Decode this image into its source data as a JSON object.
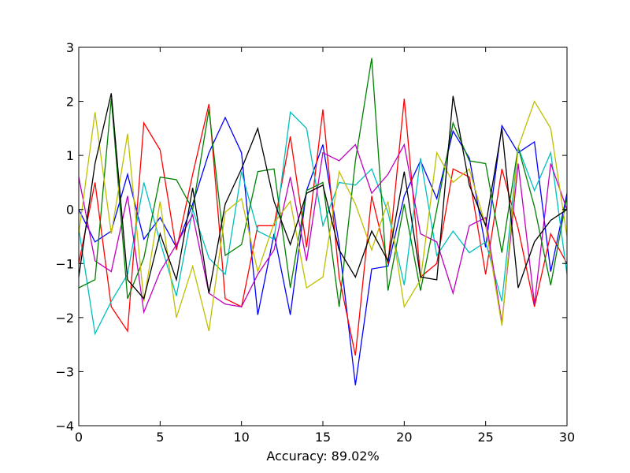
{
  "chart_data": {
    "type": "line",
    "title": "",
    "xlabel": "Accuracy: 89.02%",
    "ylabel": "",
    "xlim": [
      0,
      30
    ],
    "ylim": [
      -4,
      3
    ],
    "xticks": [
      0,
      5,
      10,
      15,
      20,
      25,
      30
    ],
    "yticks": [
      -4,
      -3,
      -2,
      -1,
      0,
      1,
      2,
      3
    ],
    "grid": false,
    "legend": "none",
    "x": [
      0,
      1,
      2,
      3,
      4,
      5,
      6,
      7,
      8,
      9,
      10,
      11,
      12,
      13,
      14,
      15,
      16,
      17,
      18,
      19,
      20,
      21,
      22,
      23,
      24,
      25,
      26,
      27,
      28,
      29,
      30
    ],
    "series": [
      {
        "color": "#0000ff",
        "values": [
          0.0,
          -0.6,
          -0.4,
          0.65,
          -0.55,
          -0.15,
          -0.7,
          0.1,
          1.05,
          1.7,
          1.05,
          -1.95,
          -0.45,
          -1.95,
          0.35,
          1.2,
          -0.65,
          -3.25,
          -1.1,
          -1.05,
          0.25,
          0.9,
          0.2,
          1.45,
          0.95,
          -0.7,
          1.55,
          1.05,
          1.25,
          -1.15,
          0.3
        ]
      },
      {
        "color": "#ff0000",
        "values": [
          -1.0,
          0.5,
          -1.8,
          -2.25,
          1.6,
          1.1,
          -0.75,
          0.65,
          1.95,
          -1.65,
          -1.8,
          -0.3,
          -0.3,
          1.35,
          -0.7,
          1.85,
          -1.25,
          -2.7,
          0.25,
          -1.0,
          2.05,
          -1.25,
          -1.0,
          0.75,
          0.6,
          -1.2,
          0.75,
          -0.35,
          -1.8,
          -0.45,
          -1.0
        ]
      },
      {
        "color": "#00bfbf",
        "values": [
          -0.35,
          -2.3,
          -1.7,
          -1.2,
          0.5,
          -0.6,
          -1.6,
          0.0,
          -0.9,
          -1.2,
          0.7,
          -0.4,
          -0.55,
          1.8,
          1.5,
          -0.3,
          0.5,
          0.45,
          0.75,
          -0.05,
          -1.4,
          0.95,
          -0.85,
          -0.4,
          -0.8,
          -0.6,
          -1.7,
          1.15,
          0.35,
          1.05,
          -1.2
        ]
      },
      {
        "color": "#bf00bf",
        "values": [
          0.6,
          -0.95,
          -1.15,
          0.25,
          -1.9,
          -1.15,
          -0.65,
          -0.1,
          -1.55,
          -1.75,
          -1.8,
          -1.2,
          -0.75,
          0.6,
          -0.95,
          1.05,
          0.9,
          1.2,
          0.3,
          0.65,
          1.2,
          -0.45,
          -0.6,
          -1.55,
          -0.3,
          -0.15,
          -2.1,
          0.85,
          -1.75,
          0.85,
          0.0
        ]
      },
      {
        "color": "#008000",
        "values": [
          -1.45,
          -1.3,
          2.05,
          -1.65,
          -0.9,
          0.6,
          0.55,
          0.0,
          1.85,
          -0.85,
          -0.65,
          0.7,
          0.75,
          -1.45,
          0.35,
          0.5,
          -1.8,
          0.9,
          2.8,
          -1.5,
          0.1,
          -1.5,
          0.0,
          1.6,
          0.9,
          0.85,
          -0.8,
          1.15,
          0.05,
          -1.4,
          0.25
        ]
      },
      {
        "color": "#bfbf00",
        "values": [
          -0.45,
          1.8,
          -0.45,
          1.4,
          -1.7,
          0.15,
          -2.0,
          -1.05,
          -2.25,
          -0.05,
          0.2,
          -1.15,
          -0.25,
          0.15,
          -1.45,
          -1.25,
          0.7,
          0.1,
          -0.75,
          0.15,
          -1.8,
          -1.3,
          1.05,
          0.5,
          0.75,
          -0.3,
          -2.15,
          1.15,
          2.0,
          1.5,
          -0.5
        ]
      },
      {
        "color": "#000000",
        "values": [
          -1.25,
          0.85,
          2.15,
          -1.3,
          -1.65,
          -0.45,
          -1.3,
          0.4,
          -1.55,
          0.1,
          0.75,
          1.5,
          0.15,
          -0.65,
          0.3,
          0.45,
          -0.75,
          -1.25,
          -0.4,
          -0.95,
          0.7,
          -1.25,
          -1.3,
          2.1,
          0.45,
          -0.3,
          1.5,
          -1.45,
          -0.6,
          -0.2,
          0.0
        ]
      }
    ]
  }
}
